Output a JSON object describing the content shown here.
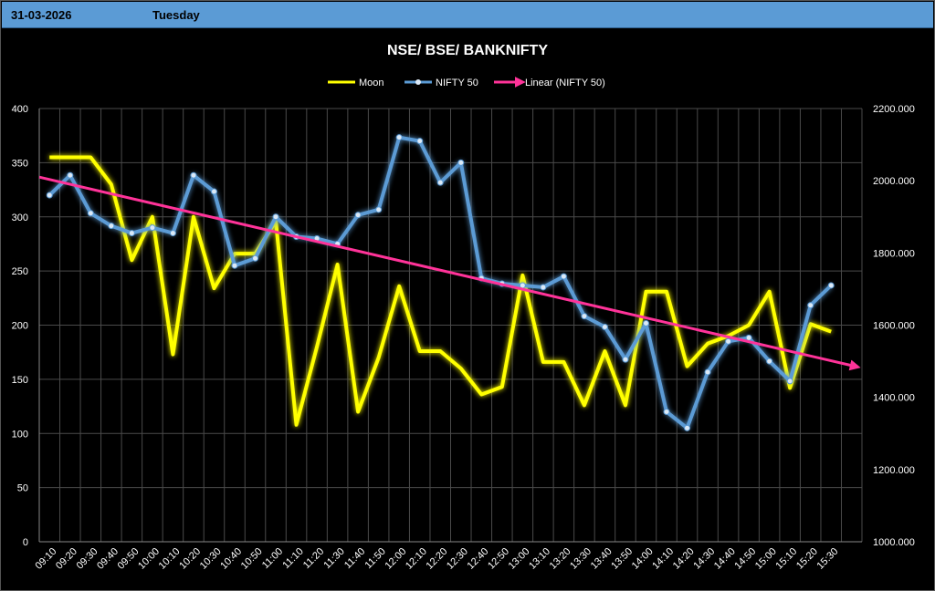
{
  "header": {
    "date": "31-03-2026",
    "day": "Tuesday"
  },
  "chart_data": {
    "type": "line",
    "title": "NSE/ BSE/ BANKNIFTY",
    "categories": [
      "09:10",
      "09:20",
      "09:30",
      "09:40",
      "09:50",
      "10:00",
      "10:10",
      "10:20",
      "10:30",
      "10:40",
      "10:50",
      "11:00",
      "11:10",
      "11:20",
      "11:30",
      "11:40",
      "11:50",
      "12:00",
      "12:10",
      "12:20",
      "12:30",
      "12:40",
      "12:50",
      "13:00",
      "13:10",
      "13:20",
      "13:30",
      "13:40",
      "13:50",
      "14:00",
      "14:10",
      "14:20",
      "14:30",
      "14:40",
      "14:50",
      "15:00",
      "15:10",
      "15:20",
      "15:30"
    ],
    "y_left": {
      "ticks": [
        "0",
        "50",
        "100",
        "150",
        "200",
        "250",
        "300",
        "350",
        "400"
      ],
      "range": [
        0,
        400
      ]
    },
    "y_right": {
      "ticks": [
        "1000.000",
        "1200.000",
        "1400.000",
        "1600.000",
        "1800.000",
        "2000.000",
        "2200.000"
      ],
      "range": [
        1000,
        2200
      ]
    },
    "grid": true,
    "legend_position": "top",
    "series": [
      {
        "name": "Moon",
        "axis": "left",
        "color": "#ffff00",
        "values": [
          355,
          355,
          355,
          330,
          260,
          300,
          173,
          300,
          234,
          266,
          266,
          296,
          108,
          180,
          256,
          120,
          170,
          236,
          176,
          176,
          160,
          136,
          143,
          246,
          166,
          166,
          126,
          176,
          126,
          231,
          231,
          162,
          183,
          190,
          200,
          231,
          142,
          201,
          194
        ]
      },
      {
        "name": "NIFTY 50",
        "axis": "right",
        "color": "#5b9bd5",
        "values": [
          1960,
          2015,
          1910,
          1875,
          1855,
          1870,
          1855,
          2015,
          1970,
          1765,
          1785,
          1900,
          1845,
          1840,
          1825,
          1905,
          1920,
          2120,
          2110,
          1995,
          2050,
          1730,
          1715,
          1710,
          1705,
          1735,
          1625,
          1595,
          1505,
          1605,
          1360,
          1315,
          1470,
          1555,
          1565,
          1500,
          1445,
          1655,
          1710
        ]
      }
    ],
    "trendline": {
      "name": "Linear (NIFTY 50)",
      "of": "NIFTY 50",
      "color": "#ff3399",
      "start": 2010,
      "end": 1485
    }
  }
}
